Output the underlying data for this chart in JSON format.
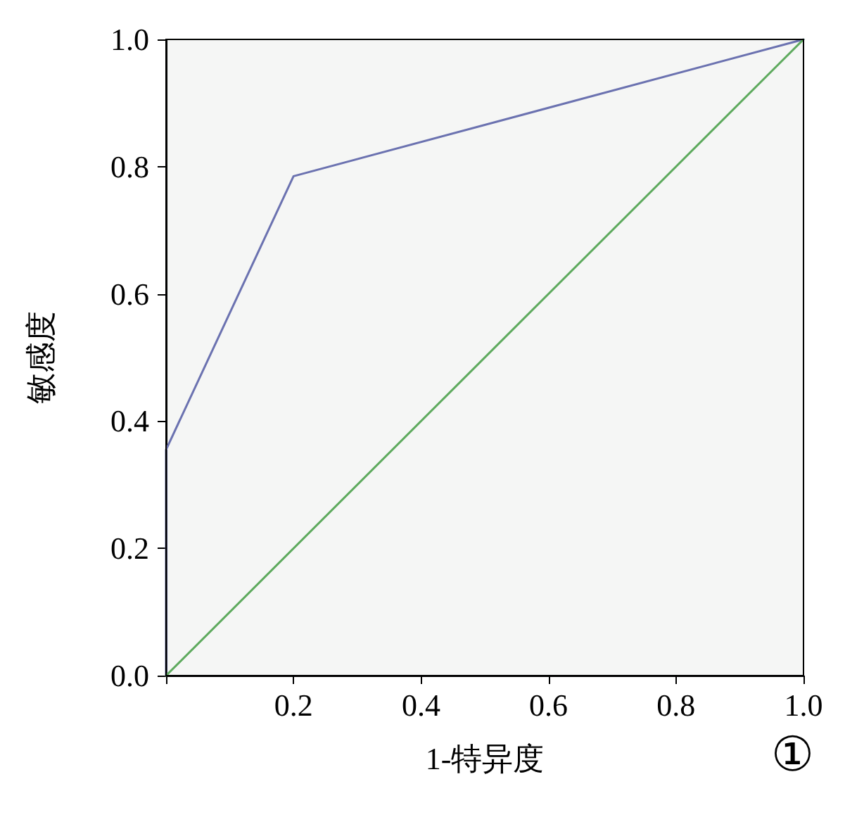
{
  "chart_data": {
    "type": "line",
    "xlabel": "1-特异度",
    "ylabel": "敏感度",
    "xlim": [
      0,
      1
    ],
    "ylim": [
      0,
      1
    ],
    "xticks": [
      {
        "value": 0,
        "label": null
      },
      0.2,
      0.4,
      0.6,
      0.8,
      {
        "value": 1,
        "label": "1.0"
      }
    ],
    "yticks": [
      {
        "value": 0,
        "label": "0.0"
      },
      0.2,
      0.4,
      0.6,
      0.8,
      {
        "value": 1,
        "label": "1.0"
      }
    ],
    "series": [
      {
        "color": "#6b72b0",
        "x": [
          0,
          0,
          0.2,
          1
        ],
        "values": [
          0,
          0.355,
          0.785,
          1
        ]
      },
      {
        "color": "#5eaa5e",
        "x": [
          0,
          1
        ],
        "values": [
          0,
          1
        ]
      }
    ],
    "grid": false,
    "marker": "none",
    "line_style": "solid",
    "annotations": [
      "①"
    ]
  }
}
